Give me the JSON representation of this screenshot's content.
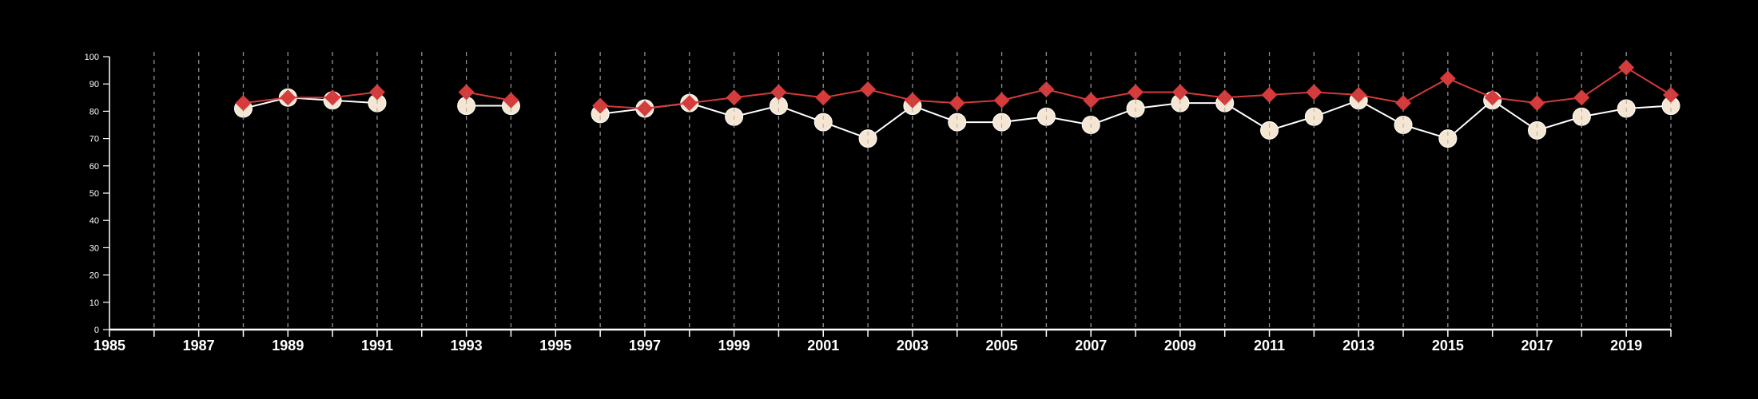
{
  "chart_data": {
    "type": "line",
    "title": "",
    "xlabel": "",
    "ylabel": "",
    "xlim": [
      1985,
      2020
    ],
    "ylim": [
      0,
      100
    ],
    "x_ticks": [
      1985,
      1987,
      1989,
      1991,
      1993,
      1995,
      1997,
      1999,
      2001,
      2003,
      2005,
      2007,
      2009,
      2011,
      2013,
      2015,
      2017,
      2019
    ],
    "y_ticks": [
      0,
      10,
      20,
      30,
      40,
      50,
      60,
      70,
      80,
      90,
      100
    ],
    "vertical_gridlines": "dashed at every year from 1986 to 2020",
    "legend": "none",
    "series": [
      {
        "marker": "circle",
        "color": "#f5e6d3",
        "line_color": "#ffffff",
        "points": [
          [
            1988,
            81
          ],
          [
            1989,
            85
          ],
          [
            1990,
            84
          ],
          [
            1991,
            83
          ],
          [
            1993,
            82
          ],
          [
            1994,
            82
          ],
          [
            1996,
            79
          ],
          [
            1997,
            81
          ],
          [
            1998,
            83
          ],
          [
            1999,
            78
          ],
          [
            2000,
            82
          ],
          [
            2001,
            76
          ],
          [
            2002,
            70
          ],
          [
            2003,
            82
          ],
          [
            2004,
            76
          ],
          [
            2005,
            76
          ],
          [
            2006,
            78
          ],
          [
            2007,
            75
          ],
          [
            2008,
            81
          ],
          [
            2009,
            83
          ],
          [
            2010,
            83
          ],
          [
            2011,
            73
          ],
          [
            2012,
            78
          ],
          [
            2013,
            84
          ],
          [
            2014,
            75
          ],
          [
            2015,
            70
          ],
          [
            2016,
            84
          ],
          [
            2017,
            73
          ],
          [
            2018,
            78
          ],
          [
            2019,
            81
          ],
          [
            2020,
            82
          ]
        ]
      },
      {
        "marker": "diamond",
        "color": "#d63a3a",
        "line_color": "#d63a3a",
        "points": [
          [
            1988,
            83
          ],
          [
            1989,
            85
          ],
          [
            1990,
            85
          ],
          [
            1991,
            87
          ],
          [
            1993,
            87
          ],
          [
            1994,
            84
          ],
          [
            1996,
            82
          ],
          [
            1997,
            81
          ],
          [
            1998,
            83
          ],
          [
            1999,
            85
          ],
          [
            2000,
            87
          ],
          [
            2001,
            85
          ],
          [
            2002,
            88
          ],
          [
            2003,
            84
          ],
          [
            2004,
            83
          ],
          [
            2005,
            84
          ],
          [
            2006,
            88
          ],
          [
            2007,
            84
          ],
          [
            2008,
            87
          ],
          [
            2009,
            87
          ],
          [
            2010,
            85
          ],
          [
            2011,
            86
          ],
          [
            2012,
            87
          ],
          [
            2013,
            86
          ],
          [
            2014,
            83
          ],
          [
            2015,
            92
          ],
          [
            2016,
            85
          ],
          [
            2017,
            83
          ],
          [
            2018,
            85
          ],
          [
            2019,
            96
          ],
          [
            2020,
            86
          ]
        ]
      }
    ]
  }
}
